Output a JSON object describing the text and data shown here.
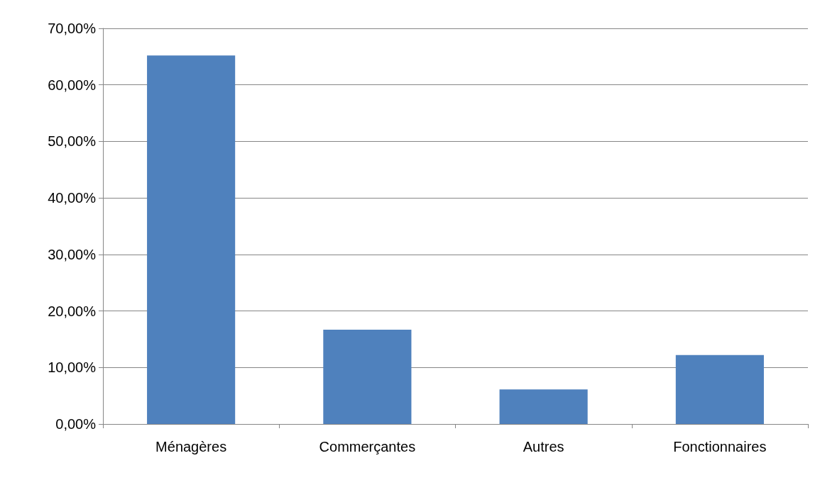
{
  "chart_data": {
    "type": "bar",
    "categories": [
      "Ménagères",
      "Commerçantes",
      "Autres",
      "Fonctionnaires"
    ],
    "values": [
      65.2,
      16.7,
      6.1,
      12.2
    ],
    "color": "#4f81bd",
    "ylim": [
      0,
      70
    ],
    "yticks": [
      {
        "value": 0,
        "label": "0,00%"
      },
      {
        "value": 10,
        "label": "10,00%"
      },
      {
        "value": 20,
        "label": "20,00%"
      },
      {
        "value": 30,
        "label": "30,00%"
      },
      {
        "value": 40,
        "label": "40,00%"
      },
      {
        "value": 50,
        "label": "50,00%"
      },
      {
        "value": 60,
        "label": "60,00%"
      },
      {
        "value": 70,
        "label": "70,00%"
      }
    ],
    "grid": "y"
  }
}
